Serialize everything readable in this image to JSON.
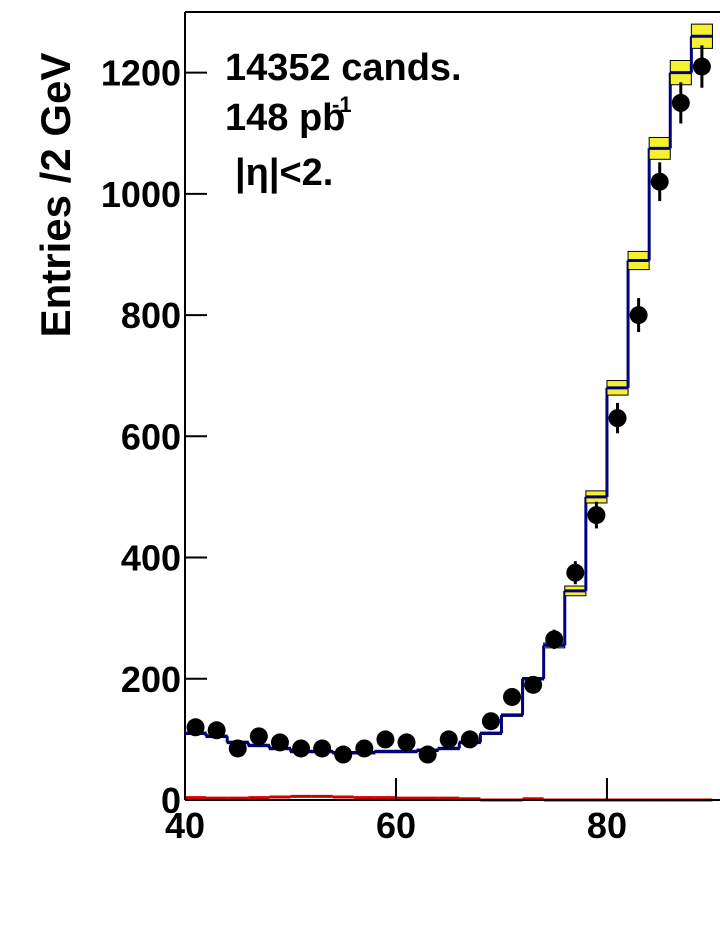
{
  "chart_data": {
    "type": "histogram",
    "y_label": "Entries /2 GeV",
    "annotations": [
      "14352 cands.",
      "148 pb",
      "-1",
      "|η|<2."
    ],
    "bins": [
      40,
      42,
      44,
      46,
      48,
      50,
      52,
      54,
      56,
      58,
      60,
      62,
      64,
      66,
      68,
      70,
      72,
      74,
      76,
      78,
      80,
      82,
      84,
      86,
      88,
      90
    ],
    "xlim": [
      40,
      91
    ],
    "ylim": [
      0,
      1300
    ],
    "xticks": [
      40,
      60,
      80
    ],
    "yticks": [
      0,
      200,
      400,
      600,
      800,
      1000,
      1200
    ],
    "series": [
      {
        "style": "step",
        "color": "#000080",
        "band_color": "#f5f032",
        "values": [
          110,
          105,
          95,
          90,
          85,
          80,
          80,
          78,
          78,
          80,
          80,
          82,
          85,
          95,
          110,
          140,
          200,
          255,
          345,
          500,
          680,
          890,
          1075,
          1200,
          1260
        ],
        "errors": [
          2,
          2,
          2,
          2,
          2,
          2,
          2,
          2,
          2,
          2,
          2,
          2,
          2,
          2,
          2,
          2,
          2,
          4,
          8,
          10,
          12,
          15,
          18,
          20,
          20
        ]
      },
      {
        "style": "step",
        "color": "#d00000",
        "values": [
          4,
          3,
          3,
          4,
          5,
          6,
          6,
          5,
          4,
          4,
          3,
          3,
          3,
          2,
          0,
          0,
          2,
          0,
          0,
          0,
          0,
          0,
          0,
          0,
          0
        ]
      },
      {
        "style": "points",
        "color": "#000000",
        "values": [
          120,
          115,
          85,
          105,
          95,
          85,
          85,
          75,
          85,
          100,
          95,
          75,
          100,
          100,
          130,
          170,
          190,
          265,
          375,
          470,
          630,
          800,
          1020,
          1150,
          1210
        ],
        "errors": [
          11,
          11,
          9,
          10,
          10,
          9,
          9,
          9,
          9,
          10,
          10,
          9,
          10,
          10,
          11,
          13,
          14,
          16,
          19,
          22,
          25,
          28,
          32,
          34,
          35
        ]
      }
    ]
  }
}
